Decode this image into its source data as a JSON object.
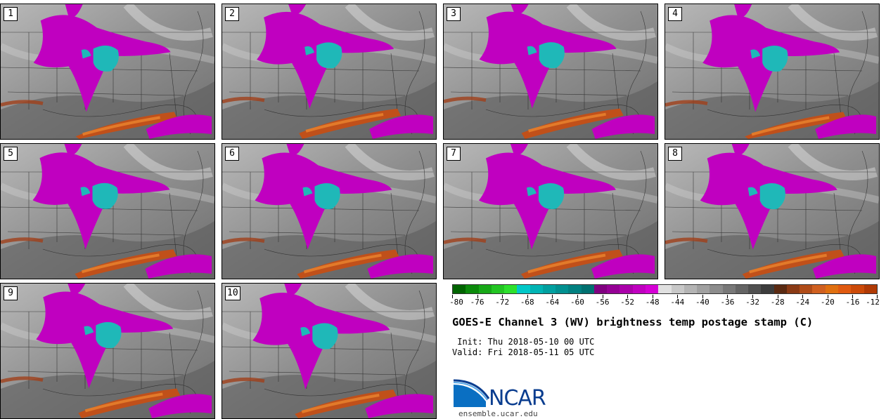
{
  "panels": [
    {
      "label": "1"
    },
    {
      "label": "2"
    },
    {
      "label": "3"
    },
    {
      "label": "4"
    },
    {
      "label": "5"
    },
    {
      "label": "6"
    },
    {
      "label": "7"
    },
    {
      "label": "8"
    },
    {
      "label": "9"
    },
    {
      "label": "10"
    }
  ],
  "colorbar": {
    "colors": [
      "#006400",
      "#0b8a0b",
      "#17a817",
      "#22c522",
      "#2de02d",
      "#00c8c8",
      "#00b4b4",
      "#00a0a0",
      "#009090",
      "#008080",
      "#007070",
      "#800080",
      "#950095",
      "#aa00aa",
      "#c000c0",
      "#d500d5",
      "#e0e0e0",
      "#c8c8c8",
      "#b4b4b4",
      "#a0a0a0",
      "#8c8c8c",
      "#787878",
      "#646464",
      "#505050",
      "#3c3c3c",
      "#5a2a12",
      "#8a3a15",
      "#b04c18",
      "#d06020",
      "#e07010",
      "#e05a10",
      "#cc4a08",
      "#b03a05"
    ],
    "tick_labels": [
      "-80",
      "-76",
      "-72",
      "-68",
      "-64",
      "-60",
      "-56",
      "-52",
      "-48",
      "-44",
      "-40",
      "-36",
      "-32",
      "-28",
      "-24",
      "-20",
      "-16",
      "-12"
    ]
  },
  "title": "GOES-E Channel 3 (WV) brightness temp postage stamp (C)",
  "init_line": " Init: Thu 2018-05-10 00 UTC",
  "valid_line": "Valid: Fri 2018-05-11 05 UTC",
  "logo_text": "NCAR",
  "url": "ensemble.ucar.edu"
}
